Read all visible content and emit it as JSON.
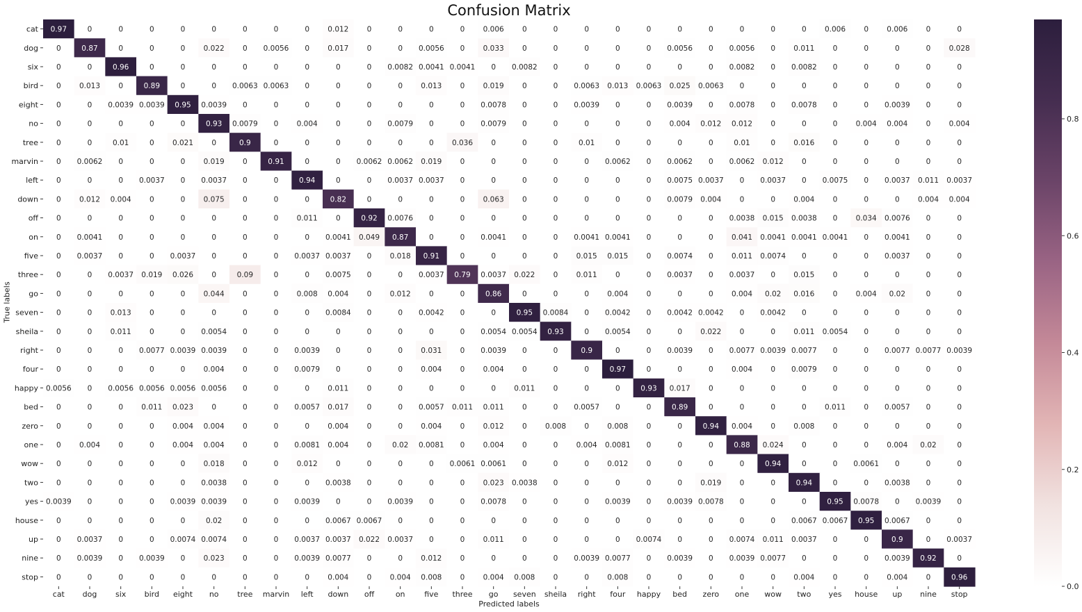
{
  "chart_data": {
    "type": "heatmap",
    "title": "Confusion Matrix",
    "xlabel": "Predicted labels",
    "ylabel": "True labels",
    "labels": [
      "cat",
      "dog",
      "six",
      "bird",
      "eight",
      "no",
      "tree",
      "marvin",
      "left",
      "down",
      "off",
      "on",
      "five",
      "three",
      "go",
      "seven",
      "sheila",
      "right",
      "four",
      "happy",
      "bed",
      "zero",
      "one",
      "wow",
      "two",
      "yes",
      "house",
      "up",
      "nine",
      "stop"
    ],
    "matrix": [
      [
        "0.97",
        "0",
        "0",
        "0",
        "0",
        "0",
        "0",
        "0",
        "0",
        "0.012",
        "0",
        "0",
        "0",
        "0",
        "0.006",
        "0",
        "0",
        "0",
        "0",
        "0",
        "0",
        "0",
        "0",
        "0",
        "0",
        "0.006",
        "0",
        "0.006",
        "0",
        "0"
      ],
      [
        "0",
        "0.87",
        "0",
        "0",
        "0",
        "0.022",
        "0",
        "0.0056",
        "0",
        "0.017",
        "0",
        "0",
        "0.0056",
        "0",
        "0.033",
        "0",
        "0",
        "0",
        "0",
        "0",
        "0.0056",
        "0",
        "0.0056",
        "0",
        "0.011",
        "0",
        "0",
        "0",
        "0",
        "0.028"
      ],
      [
        "0",
        "0",
        "0.96",
        "0",
        "0",
        "0",
        "0",
        "0",
        "0",
        "0",
        "0",
        "0.0082",
        "0.0041",
        "0.0041",
        "0",
        "0.0082",
        "0",
        "0",
        "0",
        "0",
        "0",
        "0",
        "0.0082",
        "0",
        "0.0082",
        "0",
        "0",
        "0",
        "0",
        "0"
      ],
      [
        "0",
        "0.013",
        "0",
        "0.89",
        "0",
        "0",
        "0.0063",
        "0.0063",
        "0",
        "0",
        "0",
        "0",
        "0.013",
        "0",
        "0.019",
        "0",
        "0",
        "0.0063",
        "0.013",
        "0.0063",
        "0.025",
        "0.0063",
        "0",
        "0",
        "0",
        "0",
        "0",
        "0",
        "0",
        "0"
      ],
      [
        "0",
        "0",
        "0.0039",
        "0.0039",
        "0.95",
        "0.0039",
        "0",
        "0",
        "0",
        "0",
        "0",
        "0",
        "0",
        "0",
        "0.0078",
        "0",
        "0",
        "0.0039",
        "0",
        "0",
        "0.0039",
        "0",
        "0.0078",
        "0",
        "0.0078",
        "0",
        "0",
        "0.0039",
        "0",
        "0"
      ],
      [
        "0",
        "0",
        "0",
        "0",
        "0",
        "0.93",
        "0.0079",
        "0",
        "0.004",
        "0",
        "0",
        "0.0079",
        "0",
        "0",
        "0.0079",
        "0",
        "0",
        "0",
        "0",
        "0",
        "0.004",
        "0.012",
        "0.012",
        "0",
        "0",
        "0",
        "0.004",
        "0.004",
        "0",
        "0.004"
      ],
      [
        "0",
        "0",
        "0.01",
        "0",
        "0.021",
        "0",
        "0.9",
        "0",
        "0",
        "0",
        "0",
        "0",
        "0",
        "0.036",
        "0",
        "0",
        "0",
        "0.01",
        "0",
        "0",
        "0",
        "0",
        "0.01",
        "0",
        "0.016",
        "0",
        "0",
        "0",
        "0",
        "0"
      ],
      [
        "0",
        "0.0062",
        "0",
        "0",
        "0",
        "0.019",
        "0",
        "0.91",
        "0",
        "0",
        "0.0062",
        "0.0062",
        "0.019",
        "0",
        "0",
        "0",
        "0",
        "0",
        "0.0062",
        "0",
        "0.0062",
        "0",
        "0.0062",
        "0.012",
        "0",
        "0",
        "0",
        "0",
        "0",
        "0"
      ],
      [
        "0",
        "0",
        "0",
        "0.0037",
        "0",
        "0.0037",
        "0",
        "0",
        "0.94",
        "0",
        "0",
        "0.0037",
        "0.0037",
        "0",
        "0",
        "0",
        "0",
        "0",
        "0",
        "0",
        "0.0075",
        "0.0037",
        "0",
        "0.0037",
        "0",
        "0.0075",
        "0",
        "0.0037",
        "0.011",
        "0.0037"
      ],
      [
        "0",
        "0.012",
        "0.004",
        "0",
        "0",
        "0.075",
        "0",
        "0",
        "0",
        "0.82",
        "0",
        "0",
        "0",
        "0",
        "0.063",
        "0",
        "0",
        "0",
        "0",
        "0",
        "0.0079",
        "0.004",
        "0",
        "0",
        "0.004",
        "0",
        "0",
        "0",
        "0.004",
        "0.004"
      ],
      [
        "0",
        "0",
        "0",
        "0",
        "0",
        "0",
        "0",
        "0",
        "0.011",
        "0",
        "0.92",
        "0.0076",
        "0",
        "0",
        "0",
        "0",
        "0",
        "0",
        "0",
        "0",
        "0",
        "0",
        "0.0038",
        "0.015",
        "0.0038",
        "0",
        "0.034",
        "0.0076",
        "0",
        "0"
      ],
      [
        "0",
        "0.0041",
        "0",
        "0",
        "0",
        "0",
        "0",
        "0",
        "0",
        "0.0041",
        "0.049",
        "0.87",
        "0",
        "0",
        "0.0041",
        "0",
        "0",
        "0.0041",
        "0.0041",
        "0",
        "0",
        "0",
        "0.041",
        "0.0041",
        "0.0041",
        "0.0041",
        "0",
        "0.0041",
        "0",
        "0"
      ],
      [
        "0",
        "0.0037",
        "0",
        "0",
        "0.0037",
        "0",
        "0",
        "0",
        "0.0037",
        "0.0037",
        "0",
        "0.018",
        "0.91",
        "0",
        "0",
        "0",
        "0",
        "0.015",
        "0.015",
        "0",
        "0.0074",
        "0",
        "0.011",
        "0.0074",
        "0",
        "0",
        "0",
        "0.0037",
        "0",
        "0"
      ],
      [
        "0",
        "0",
        "0.0037",
        "0.019",
        "0.026",
        "0",
        "0.09",
        "0",
        "0",
        "0.0075",
        "0",
        "0",
        "0.0037",
        "0.79",
        "0.0037",
        "0.022",
        "0",
        "0.011",
        "0",
        "0",
        "0.0037",
        "0",
        "0.0037",
        "0",
        "0.015",
        "0",
        "0",
        "0",
        "0",
        "0"
      ],
      [
        "0",
        "0",
        "0",
        "0",
        "0",
        "0.044",
        "0",
        "0",
        "0.008",
        "0.004",
        "0",
        "0.012",
        "0",
        "0",
        "0.86",
        "0",
        "0",
        "0",
        "0.004",
        "0",
        "0",
        "0",
        "0.004",
        "0.02",
        "0.016",
        "0",
        "0.004",
        "0.02",
        "0",
        "0"
      ],
      [
        "0",
        "0",
        "0.013",
        "0",
        "0",
        "0",
        "0",
        "0",
        "0",
        "0.0084",
        "0",
        "0",
        "0.0042",
        "0",
        "0",
        "0.95",
        "0.0084",
        "0",
        "0.0042",
        "0",
        "0.0042",
        "0.0042",
        "0",
        "0.0042",
        "0",
        "0",
        "0",
        "0",
        "0",
        "0"
      ],
      [
        "0",
        "0",
        "0.011",
        "0",
        "0",
        "0.0054",
        "0",
        "0",
        "0",
        "0",
        "0",
        "0",
        "0",
        "0",
        "0.0054",
        "0.0054",
        "0.93",
        "0",
        "0.0054",
        "0",
        "0",
        "0.022",
        "0",
        "0",
        "0.011",
        "0.0054",
        "0",
        "0",
        "0",
        "0"
      ],
      [
        "0",
        "0",
        "0",
        "0.0077",
        "0.0039",
        "0.0039",
        "0",
        "0",
        "0.0039",
        "0",
        "0",
        "0",
        "0.031",
        "0",
        "0.0039",
        "0",
        "0",
        "0.9",
        "0",
        "0",
        "0.0039",
        "0",
        "0.0077",
        "0.0039",
        "0.0077",
        "0",
        "0",
        "0.0077",
        "0.0077",
        "0.0039"
      ],
      [
        "0",
        "0",
        "0",
        "0",
        "0",
        "0.004",
        "0",
        "0",
        "0.0079",
        "0",
        "0",
        "0",
        "0.004",
        "0",
        "0.004",
        "0",
        "0",
        "0",
        "0.97",
        "0",
        "0",
        "0",
        "0.004",
        "0",
        "0.0079",
        "0",
        "0",
        "0",
        "0",
        "0"
      ],
      [
        "0.0056",
        "0",
        "0.0056",
        "0.0056",
        "0.0056",
        "0.0056",
        "0",
        "0",
        "0",
        "0.011",
        "0",
        "0",
        "0",
        "0",
        "0",
        "0.011",
        "0",
        "0",
        "0",
        "0.93",
        "0.017",
        "0",
        "0",
        "0",
        "0",
        "0",
        "0",
        "0",
        "0",
        "0"
      ],
      [
        "0",
        "0",
        "0",
        "0.011",
        "0.023",
        "0",
        "0",
        "0",
        "0.0057",
        "0.017",
        "0",
        "0",
        "0.0057",
        "0.011",
        "0.011",
        "0",
        "0",
        "0.0057",
        "0",
        "0",
        "0.89",
        "0",
        "0",
        "0",
        "0",
        "0.011",
        "0",
        "0.0057",
        "0",
        "0"
      ],
      [
        "0",
        "0",
        "0",
        "0",
        "0.004",
        "0.004",
        "0",
        "0",
        "0",
        "0.004",
        "0",
        "0",
        "0.004",
        "0",
        "0.012",
        "0",
        "0.008",
        "0",
        "0.008",
        "0",
        "0",
        "0.94",
        "0.004",
        "0",
        "0.008",
        "0",
        "0",
        "0",
        "0",
        "0"
      ],
      [
        "0",
        "0.004",
        "0",
        "0",
        "0.004",
        "0.004",
        "0",
        "0",
        "0.0081",
        "0.004",
        "0",
        "0.02",
        "0.0081",
        "0",
        "0.004",
        "0",
        "0",
        "0.004",
        "0.0081",
        "0",
        "0",
        "0",
        "0.88",
        "0.024",
        "0",
        "0",
        "0",
        "0.004",
        "0.02",
        "0"
      ],
      [
        "0",
        "0",
        "0",
        "0",
        "0",
        "0.018",
        "0",
        "0",
        "0.012",
        "0",
        "0",
        "0",
        "0",
        "0.0061",
        "0.0061",
        "0",
        "0",
        "0",
        "0.012",
        "0",
        "0",
        "0",
        "0",
        "0.94",
        "0",
        "0",
        "0.0061",
        "0",
        "0",
        "0"
      ],
      [
        "0",
        "0",
        "0",
        "0",
        "0",
        "0.0038",
        "0",
        "0",
        "0",
        "0.0038",
        "0",
        "0",
        "0",
        "0",
        "0.023",
        "0.0038",
        "0",
        "0",
        "0",
        "0",
        "0",
        "0.019",
        "0",
        "0",
        "0.94",
        "0",
        "0",
        "0.0038",
        "0",
        "0"
      ],
      [
        "0.0039",
        "0",
        "0",
        "0",
        "0.0039",
        "0.0039",
        "0",
        "0",
        "0.0039",
        "0",
        "0",
        "0.0039",
        "0",
        "0",
        "0.0078",
        "0",
        "0",
        "0",
        "0.0039",
        "0",
        "0.0039",
        "0.0078",
        "0",
        "0",
        "0",
        "0.95",
        "0.0078",
        "0",
        "0.0039",
        "0"
      ],
      [
        "0",
        "0",
        "0",
        "0",
        "0",
        "0.02",
        "0",
        "0",
        "0",
        "0.0067",
        "0.0067",
        "0",
        "0",
        "0",
        "0",
        "0",
        "0",
        "0",
        "0",
        "0",
        "0",
        "0",
        "0",
        "0",
        "0.0067",
        "0.0067",
        "0.95",
        "0.0067",
        "0",
        "0"
      ],
      [
        "0",
        "0.0037",
        "0",
        "0",
        "0.0074",
        "0.0074",
        "0",
        "0",
        "0.0037",
        "0.0037",
        "0.022",
        "0.0037",
        "0",
        "0",
        "0.011",
        "0",
        "0",
        "0",
        "0",
        "0.0074",
        "0",
        "0",
        "0.0074",
        "0.011",
        "0.0037",
        "0",
        "0",
        "0.9",
        "0",
        "0.0037"
      ],
      [
        "0",
        "0.0039",
        "0",
        "0.0039",
        "0",
        "0.023",
        "0",
        "0",
        "0.0039",
        "0.0077",
        "0",
        "0",
        "0.012",
        "0",
        "0",
        "0",
        "0",
        "0.0039",
        "0.0077",
        "0",
        "0.0039",
        "0",
        "0.0039",
        "0.0077",
        "0",
        "0",
        "0",
        "0.0039",
        "0.92",
        "0"
      ],
      [
        "0",
        "0",
        "0",
        "0",
        "0",
        "0",
        "0",
        "0",
        "0",
        "0.004",
        "0",
        "0.004",
        "0.008",
        "0",
        "0.004",
        "0.008",
        "0",
        "0",
        "0.008",
        "0",
        "0",
        "0",
        "0",
        "0",
        "0.004",
        "0",
        "0",
        "0.004",
        "0",
        "0.96"
      ]
    ],
    "colorbar": {
      "vmin": 0,
      "vmax": 0.97,
      "ticks": [
        "0.0",
        "0.2",
        "0.4",
        "0.6",
        "0.8"
      ],
      "colors": [
        "#ffffff",
        "#f1e2e0",
        "#e2b5b5",
        "#c48998",
        "#9a6484",
        "#6b4468",
        "#452d50",
        "#2c1e3d"
      ]
    }
  }
}
